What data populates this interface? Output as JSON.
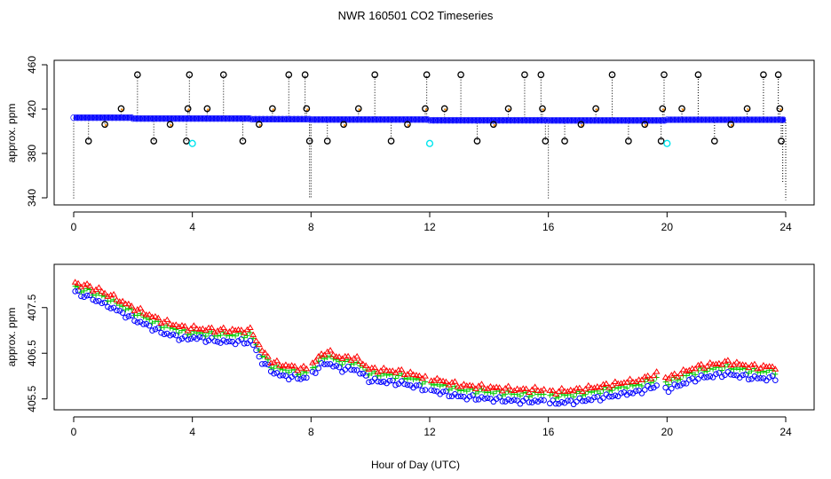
{
  "figure": {
    "title": "NWR  160501  CO2 Timeseries",
    "xlabel": "Hour of Day (UTC)"
  },
  "chart_data": [
    {
      "type": "scatter",
      "panel": "top",
      "ylabel": "approx. ppm",
      "xlim": [
        0,
        24
      ],
      "ylim": [
        340,
        460
      ],
      "xticks": [
        0,
        4,
        8,
        12,
        16,
        20,
        24
      ],
      "yticks": [
        340,
        380,
        420,
        460
      ],
      "baseline": {
        "segments": [
          {
            "x": [
              0.0,
              2.0
            ],
            "y": [
              412.3,
              412.3
            ]
          },
          {
            "x": [
              2.0,
              6.0
            ],
            "y": [
              411.5,
              411.5
            ]
          },
          {
            "x": [
              6.0,
              8.0
            ],
            "y": [
              410.9,
              410.9
            ]
          },
          {
            "x": [
              8.0,
              12.0
            ],
            "y": [
              410.6,
              410.6
            ]
          },
          {
            "x": [
              12.0,
              16.0
            ],
            "y": [
              409.9,
              409.9
            ]
          },
          {
            "x": [
              16.0,
              20.0
            ],
            "y": [
              409.8,
              409.8
            ]
          },
          {
            "x": [
              20.0,
              24.0
            ],
            "y": [
              410.4,
              410.4
            ]
          }
        ]
      },
      "spikes_high": [
        {
          "x": 1.6,
          "y": 420.4
        },
        {
          "x": 2.15,
          "y": 451.0
        },
        {
          "x": 3.85,
          "y": 420.4
        },
        {
          "x": 3.9,
          "y": 451.0
        },
        {
          "x": 4.5,
          "y": 420.4
        },
        {
          "x": 5.05,
          "y": 451.0
        },
        {
          "x": 6.7,
          "y": 420.4
        },
        {
          "x": 7.25,
          "y": 451.0
        },
        {
          "x": 7.8,
          "y": 451.0
        },
        {
          "x": 7.85,
          "y": 420.4
        },
        {
          "x": 9.6,
          "y": 420.4
        },
        {
          "x": 10.15,
          "y": 451.0
        },
        {
          "x": 11.85,
          "y": 420.4
        },
        {
          "x": 11.9,
          "y": 451.0
        },
        {
          "x": 12.5,
          "y": 420.4
        },
        {
          "x": 13.05,
          "y": 451.0
        },
        {
          "x": 14.65,
          "y": 420.4
        },
        {
          "x": 15.2,
          "y": 451.0
        },
        {
          "x": 15.75,
          "y": 451.0
        },
        {
          "x": 15.8,
          "y": 420.4
        },
        {
          "x": 17.6,
          "y": 420.4
        },
        {
          "x": 18.15,
          "y": 451.0
        },
        {
          "x": 19.85,
          "y": 420.4
        },
        {
          "x": 19.9,
          "y": 451.0
        },
        {
          "x": 20.5,
          "y": 420.4
        },
        {
          "x": 21.05,
          "y": 451.0
        },
        {
          "x": 22.7,
          "y": 420.4
        },
        {
          "x": 23.25,
          "y": 451.0
        },
        {
          "x": 23.75,
          "y": 451.0
        },
        {
          "x": 23.8,
          "y": 420.4
        }
      ],
      "spikes_low": [
        {
          "x": 0.5,
          "y": 391.2
        },
        {
          "x": 1.05,
          "y": 406.2
        },
        {
          "x": 2.7,
          "y": 391.2
        },
        {
          "x": 3.25,
          "y": 406.2
        },
        {
          "x": 3.8,
          "y": 391.2
        },
        {
          "x": 5.7,
          "y": 391.2
        },
        {
          "x": 6.25,
          "y": 406.2
        },
        {
          "x": 7.95,
          "y": 391.2
        },
        {
          "x": 8.55,
          "y": 391.2
        },
        {
          "x": 9.1,
          "y": 406.2
        },
        {
          "x": 10.7,
          "y": 391.2
        },
        {
          "x": 11.25,
          "y": 406.2
        },
        {
          "x": 13.6,
          "y": 391.2
        },
        {
          "x": 14.15,
          "y": 406.2
        },
        {
          "x": 15.9,
          "y": 391.2
        },
        {
          "x": 16.55,
          "y": 391.2
        },
        {
          "x": 17.1,
          "y": 406.2
        },
        {
          "x": 18.7,
          "y": 391.2
        },
        {
          "x": 19.25,
          "y": 406.2
        },
        {
          "x": 19.8,
          "y": 391.2
        },
        {
          "x": 21.6,
          "y": 391.2
        },
        {
          "x": 22.15,
          "y": 406.2
        },
        {
          "x": 23.85,
          "y": 391.2
        }
      ],
      "cyan_points": [
        {
          "x": 4.0,
          "y": 389.0
        },
        {
          "x": 12.0,
          "y": 389.0
        },
        {
          "x": 20.0,
          "y": 389.0
        }
      ],
      "drops": [
        {
          "x": 0.0,
          "y": 339.0
        },
        {
          "x": 7.95,
          "y": 339.0
        },
        {
          "x": 8.0,
          "y": 339.0
        },
        {
          "x": 16.0,
          "y": 339.0
        },
        {
          "x": 23.9,
          "y": 353.0
        },
        {
          "x": 24.0,
          "y": 338.0
        }
      ],
      "colors": {
        "baseline": "#0000ff",
        "points": "#000000",
        "cyan": "#00e5ee",
        "accent": "#ff8c00"
      }
    },
    {
      "type": "scatter",
      "panel": "bottom",
      "ylabel": "approx. ppm",
      "xlim": [
        0,
        24
      ],
      "ylim": [
        405.3,
        408.35
      ],
      "xticks": [
        0,
        4,
        8,
        12,
        16,
        20,
        24
      ],
      "yticks": [
        405.5,
        406.5,
        407.5
      ],
      "ytick_labels": [
        "405.5",
        "406.5",
        "407.5"
      ],
      "series": [
        {
          "marker": "o",
          "color": "#0000ff",
          "x": [
            0.0,
            1.0,
            2.0,
            3.0,
            3.8,
            4.0,
            5.0,
            5.5,
            6.0,
            6.3,
            6.7,
            7.0,
            7.8,
            8.0,
            8.5,
            9.0,
            9.5,
            10.0,
            11.0,
            12.0,
            13.0,
            14.0,
            15.0,
            15.9,
            16.0,
            17.0,
            18.0,
            19.0,
            19.7,
            20.0,
            21.0,
            22.0,
            23.0,
            23.7
          ],
          "y": [
            407.85,
            407.6,
            407.25,
            406.95,
            406.8,
            406.85,
            406.75,
            406.75,
            406.75,
            406.35,
            406.1,
            406.0,
            405.95,
            406.05,
            406.3,
            406.15,
            406.15,
            405.9,
            405.85,
            405.7,
            405.55,
            405.5,
            405.45,
            405.45,
            405.4,
            405.45,
            405.55,
            405.65,
            405.8,
            405.7,
            405.95,
            406.05,
            405.95,
            405.95
          ]
        },
        {
          "marker": "+",
          "color": "#00cc00",
          "x": [
            0.0,
            1.0,
            2.0,
            3.0,
            3.8,
            4.0,
            5.0,
            5.5,
            6.0,
            6.3,
            6.7,
            7.0,
            7.8,
            8.0,
            8.5,
            9.0,
            9.5,
            10.0,
            11.0,
            12.0,
            13.0,
            14.0,
            15.0,
            15.9,
            16.0,
            17.0,
            18.0,
            19.0,
            19.7,
            20.0,
            21.0,
            22.0,
            23.0,
            23.7
          ],
          "y": [
            407.95,
            407.75,
            407.4,
            407.1,
            406.95,
            406.95,
            406.9,
            406.9,
            406.9,
            406.5,
            406.2,
            406.15,
            406.05,
            406.15,
            406.45,
            406.3,
            406.3,
            406.05,
            406.0,
            405.85,
            405.7,
            405.65,
            405.6,
            405.6,
            405.55,
            405.6,
            405.7,
            405.8,
            405.95,
            405.85,
            406.1,
            406.2,
            406.1,
            406.1
          ]
        },
        {
          "marker": "triangle",
          "color": "#ff0000",
          "x": [
            0.0,
            1.0,
            2.0,
            3.0,
            3.8,
            4.0,
            5.0,
            5.5,
            6.0,
            6.3,
            6.7,
            7.0,
            7.8,
            8.0,
            8.5,
            9.0,
            9.5,
            10.0,
            11.0,
            12.0,
            13.0,
            14.0,
            15.0,
            15.9,
            16.0,
            17.0,
            18.0,
            19.0,
            19.7,
            20.0,
            21.0,
            22.0,
            23.0,
            23.7
          ],
          "y": [
            408.05,
            407.85,
            407.5,
            407.2,
            407.05,
            407.05,
            407.0,
            407.0,
            407.0,
            406.6,
            406.3,
            406.25,
            406.15,
            406.25,
            406.55,
            406.4,
            406.4,
            406.15,
            406.1,
            405.95,
            405.8,
            405.75,
            405.7,
            405.7,
            405.65,
            405.7,
            405.8,
            405.9,
            406.05,
            405.95,
            406.2,
            406.3,
            406.2,
            406.2
          ]
        }
      ]
    }
  ]
}
